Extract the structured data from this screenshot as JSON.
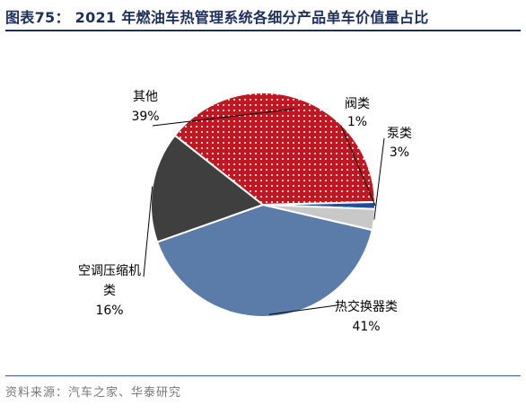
{
  "title": "图表75： 2021 年燃油车热管理系统各细分产品单车价值量占比",
  "source": "资料来源：汽车之家、华泰研究",
  "chart_data": {
    "type": "pie",
    "title": "图表75： 2021 年燃油车热管理系统各细分产品单车价值量占比",
    "slices": [
      {
        "name": "热交换器类",
        "value": 41,
        "label": "41%",
        "color": "#5b7ba8",
        "pattern": "none"
      },
      {
        "name": "空调压缩机类",
        "value": 16,
        "label": "16%",
        "color": "#3f3f3f",
        "pattern": "none"
      },
      {
        "name": "其他",
        "value": 39,
        "label": "39%",
        "color": "#c01822",
        "pattern": "dots"
      },
      {
        "name": "阀类",
        "value": 1,
        "label": "1%",
        "color": "#1f4e9a",
        "pattern": "none"
      },
      {
        "name": "泵类",
        "value": 3,
        "label": "3%",
        "color": "#c8c8c8",
        "pattern": "none"
      }
    ],
    "legend": "none",
    "data_labels": "outside"
  }
}
